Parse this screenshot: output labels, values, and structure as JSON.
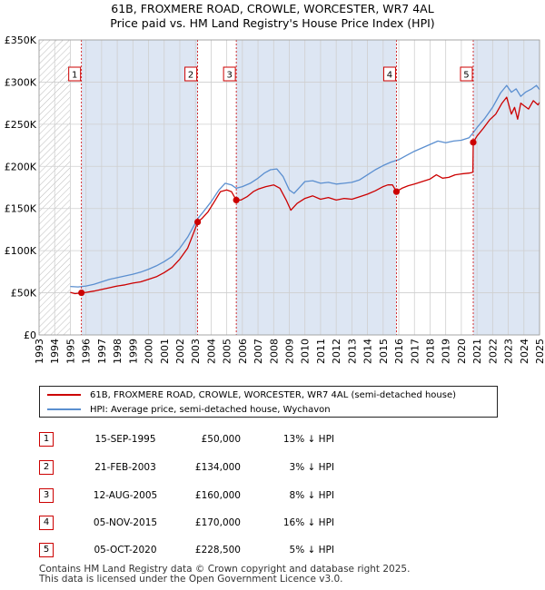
{
  "titles": {
    "line1": "61B, FROXMERE ROAD, CROWLE, WORCESTER, WR7 4AL",
    "line2": "Price paid vs. HM Land Registry's House Price Index (HPI)"
  },
  "colors": {
    "property": "#cc0000",
    "hpi": "#5b8fd0",
    "shade": "#dde6f3",
    "grid": "#cfcfcf"
  },
  "chart_data": {
    "type": "line",
    "xlim": [
      1993,
      2025
    ],
    "ylim": [
      0,
      350000
    ],
    "y_ticks": [
      {
        "value": 0,
        "label": "£0"
      },
      {
        "value": 50000,
        "label": "£50K"
      },
      {
        "value": 100000,
        "label": "£100K"
      },
      {
        "value": 150000,
        "label": "£150K"
      },
      {
        "value": 200000,
        "label": "£200K"
      },
      {
        "value": 250000,
        "label": "£250K"
      },
      {
        "value": 300000,
        "label": "£300K"
      },
      {
        "value": 350000,
        "label": "£350K"
      }
    ],
    "x_ticks": [
      "1993",
      "1994",
      "1995",
      "1996",
      "1997",
      "1998",
      "1999",
      "2000",
      "2001",
      "2002",
      "2003",
      "2004",
      "2005",
      "2006",
      "2007",
      "2008",
      "2009",
      "2010",
      "2011",
      "2012",
      "2013",
      "2014",
      "2015",
      "2016",
      "2017",
      "2018",
      "2019",
      "2020",
      "2021",
      "2022",
      "2023",
      "2024",
      "2025"
    ],
    "series": [
      {
        "name": "61B, FROXMERE ROAD, CROWLE, WORCESTER, WR7 4AL (semi-detached house)",
        "color": "#cc0000",
        "points": [
          [
            1995.0,
            50500
          ],
          [
            1995.3,
            49000
          ],
          [
            1995.71,
            50000
          ],
          [
            1996.0,
            50500
          ],
          [
            1996.5,
            52000
          ],
          [
            1997.0,
            54000
          ],
          [
            1997.5,
            56000
          ],
          [
            1998.0,
            58000
          ],
          [
            1998.5,
            59500
          ],
          [
            1999.0,
            61500
          ],
          [
            1999.5,
            63000
          ],
          [
            2000.0,
            66000
          ],
          [
            2000.5,
            69000
          ],
          [
            2001.0,
            74000
          ],
          [
            2001.5,
            80000
          ],
          [
            2002.0,
            90000
          ],
          [
            2002.5,
            103000
          ],
          [
            2002.9,
            122000
          ],
          [
            2003.14,
            134000
          ],
          [
            2003.4,
            138000
          ],
          [
            2003.8,
            146000
          ],
          [
            2004.2,
            158000
          ],
          [
            2004.6,
            170000
          ],
          [
            2005.0,
            172000
          ],
          [
            2005.3,
            170000
          ],
          [
            2005.61,
            160000
          ],
          [
            2005.9,
            160000
          ],
          [
            2006.3,
            164000
          ],
          [
            2006.7,
            170000
          ],
          [
            2007.0,
            173000
          ],
          [
            2007.5,
            176000
          ],
          [
            2008.0,
            178000
          ],
          [
            2008.4,
            174000
          ],
          [
            2008.8,
            160000
          ],
          [
            2009.1,
            148000
          ],
          [
            2009.5,
            156000
          ],
          [
            2010.0,
            162000
          ],
          [
            2010.5,
            165000
          ],
          [
            2011.0,
            161000
          ],
          [
            2011.5,
            163000
          ],
          [
            2012.0,
            160000
          ],
          [
            2012.5,
            162000
          ],
          [
            2013.0,
            161000
          ],
          [
            2013.5,
            164000
          ],
          [
            2014.0,
            167000
          ],
          [
            2014.5,
            171000
          ],
          [
            2015.0,
            176000
          ],
          [
            2015.3,
            178000
          ],
          [
            2015.6,
            178000
          ],
          [
            2015.85,
            170000
          ],
          [
            2016.2,
            174000
          ],
          [
            2016.6,
            177000
          ],
          [
            2017.0,
            179000
          ],
          [
            2017.5,
            182000
          ],
          [
            2018.0,
            185000
          ],
          [
            2018.4,
            190000
          ],
          [
            2018.8,
            186000
          ],
          [
            2019.2,
            187000
          ],
          [
            2019.6,
            190000
          ],
          [
            2020.0,
            191000
          ],
          [
            2020.5,
            192000
          ],
          [
            2020.74,
            193000
          ],
          [
            2020.76,
            228500
          ],
          [
            2021.0,
            236000
          ],
          [
            2021.4,
            245000
          ],
          [
            2021.8,
            255000
          ],
          [
            2022.2,
            262000
          ],
          [
            2022.6,
            275000
          ],
          [
            2022.9,
            282000
          ],
          [
            2023.2,
            262000
          ],
          [
            2023.4,
            270000
          ],
          [
            2023.6,
            256000
          ],
          [
            2023.8,
            275000
          ],
          [
            2024.0,
            272000
          ],
          [
            2024.3,
            268000
          ],
          [
            2024.6,
            278000
          ],
          [
            2024.9,
            273000
          ],
          [
            2025.0,
            276000
          ]
        ]
      },
      {
        "name": "HPI: Average price, semi-detached house, Wychavon",
        "color": "#5b8fd0",
        "points": [
          [
            1995.0,
            57500
          ],
          [
            1995.5,
            57000
          ],
          [
            1996.0,
            58000
          ],
          [
            1996.5,
            60000
          ],
          [
            1997.0,
            63000
          ],
          [
            1997.5,
            66000
          ],
          [
            1998.0,
            68000
          ],
          [
            1998.5,
            70000
          ],
          [
            1999.0,
            72000
          ],
          [
            1999.5,
            74500
          ],
          [
            2000.0,
            78000
          ],
          [
            2000.5,
            82000
          ],
          [
            2001.0,
            87000
          ],
          [
            2001.5,
            93000
          ],
          [
            2002.0,
            103000
          ],
          [
            2002.5,
            116000
          ],
          [
            2003.0,
            133000
          ],
          [
            2003.14,
            138000
          ],
          [
            2003.5,
            146000
          ],
          [
            2004.0,
            158000
          ],
          [
            2004.5,
            172000
          ],
          [
            2004.9,
            180000
          ],
          [
            2005.3,
            178000
          ],
          [
            2005.6,
            174000
          ],
          [
            2006.0,
            176000
          ],
          [
            2006.5,
            180000
          ],
          [
            2007.0,
            186000
          ],
          [
            2007.4,
            192000
          ],
          [
            2007.8,
            196000
          ],
          [
            2008.2,
            197000
          ],
          [
            2008.6,
            188000
          ],
          [
            2009.0,
            172000
          ],
          [
            2009.3,
            168000
          ],
          [
            2009.7,
            176000
          ],
          [
            2010.0,
            182000
          ],
          [
            2010.5,
            183000
          ],
          [
            2011.0,
            180000
          ],
          [
            2011.5,
            181000
          ],
          [
            2012.0,
            179000
          ],
          [
            2012.5,
            180000
          ],
          [
            2013.0,
            181000
          ],
          [
            2013.5,
            184000
          ],
          [
            2014.0,
            190000
          ],
          [
            2014.5,
            196000
          ],
          [
            2015.0,
            201000
          ],
          [
            2015.5,
            205000
          ],
          [
            2016.0,
            208000
          ],
          [
            2016.5,
            213000
          ],
          [
            2017.0,
            218000
          ],
          [
            2017.5,
            222000
          ],
          [
            2018.0,
            226000
          ],
          [
            2018.5,
            230000
          ],
          [
            2019.0,
            228000
          ],
          [
            2019.5,
            230000
          ],
          [
            2020.0,
            231000
          ],
          [
            2020.5,
            234000
          ],
          [
            2020.76,
            240000
          ],
          [
            2021.0,
            246000
          ],
          [
            2021.5,
            257000
          ],
          [
            2022.0,
            270000
          ],
          [
            2022.5,
            287000
          ],
          [
            2022.9,
            296000
          ],
          [
            2023.2,
            288000
          ],
          [
            2023.5,
            292000
          ],
          [
            2023.8,
            283000
          ],
          [
            2024.1,
            288000
          ],
          [
            2024.5,
            292000
          ],
          [
            2024.8,
            296000
          ],
          [
            2025.0,
            291000
          ]
        ]
      }
    ],
    "sales": [
      {
        "id": "1",
        "x": 1995.71,
        "y": 50000
      },
      {
        "id": "2",
        "x": 2003.14,
        "y": 134000
      },
      {
        "id": "3",
        "x": 2005.61,
        "y": 160000
      },
      {
        "id": "4",
        "x": 2015.85,
        "y": 170000
      },
      {
        "id": "5",
        "x": 2020.76,
        "y": 228500
      }
    ],
    "shaded_ranges": [
      [
        1995.71,
        2003.14
      ],
      [
        2005.61,
        2015.85
      ],
      [
        2020.76,
        2025.0
      ]
    ],
    "hatched_range": [
      1993.0,
      1995.0
    ]
  },
  "legend": {
    "property": "61B, FROXMERE ROAD, CROWLE, WORCESTER, WR7 4AL (semi-detached house)",
    "hpi": "HPI: Average price, semi-detached house, Wychavon"
  },
  "transactions": [
    {
      "num": "1",
      "date": "15-SEP-1995",
      "price": "£50,000",
      "hpi": "13% ↓ HPI"
    },
    {
      "num": "2",
      "date": "21-FEB-2003",
      "price": "£134,000",
      "hpi": "3% ↓ HPI"
    },
    {
      "num": "3",
      "date": "12-AUG-2005",
      "price": "£160,000",
      "hpi": "8% ↓ HPI"
    },
    {
      "num": "4",
      "date": "05-NOV-2015",
      "price": "£170,000",
      "hpi": "16% ↓ HPI"
    },
    {
      "num": "5",
      "date": "05-OCT-2020",
      "price": "£228,500",
      "hpi": "5% ↓ HPI"
    }
  ],
  "footer": {
    "line1": "Contains HM Land Registry data © Crown copyright and database right 2025.",
    "line2": "This data is licensed under the Open Government Licence v3.0."
  }
}
